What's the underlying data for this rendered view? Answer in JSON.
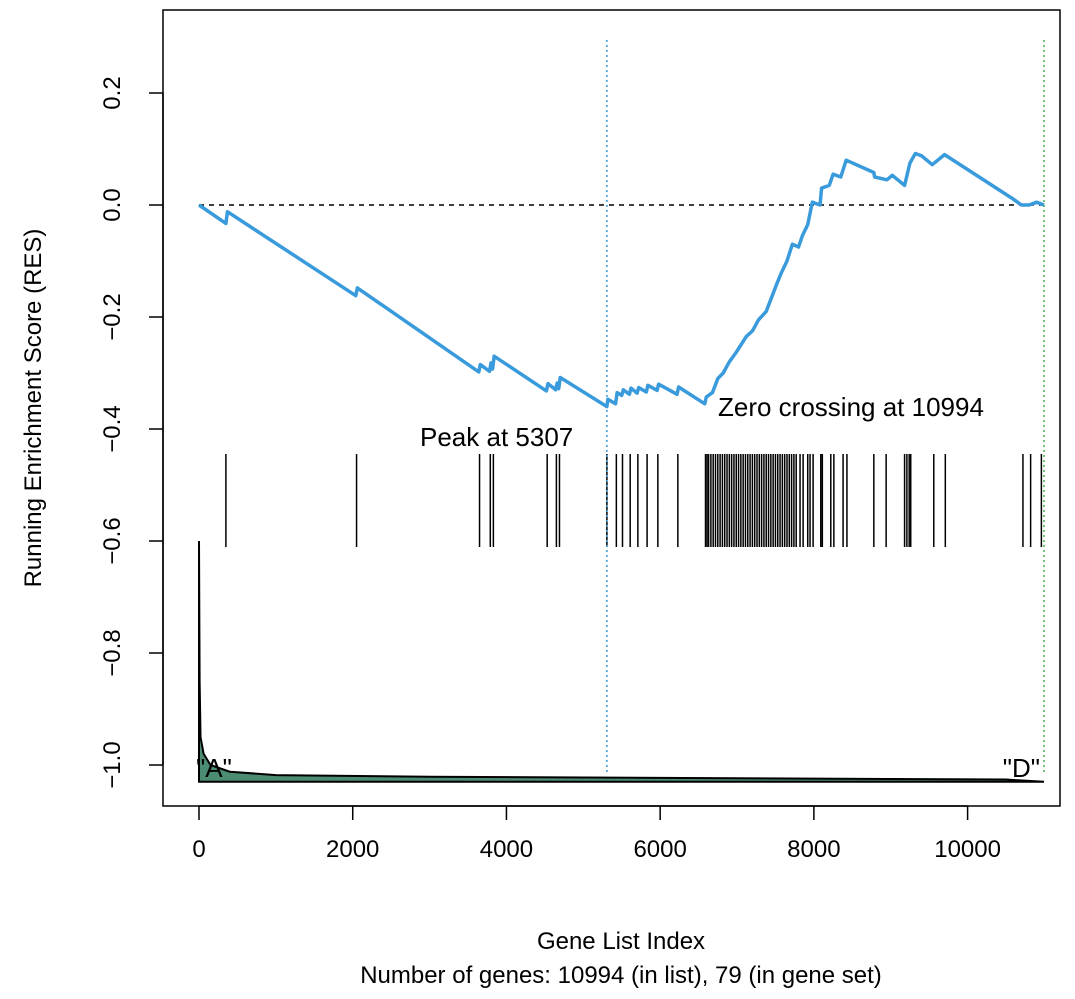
{
  "chart_data": {
    "type": "line",
    "xlabel": "Gene List Index",
    "ylabel": "Running Enrichment Score (RES)",
    "subtitle": "Number of genes: 10994 (in list), 79 (in gene set)",
    "xlim": [
      -500,
      11200
    ],
    "ylim": [
      -1.05,
      0.34
    ],
    "x_ticks": [
      "0",
      "2000",
      "4000",
      "6000",
      "8000",
      "10000"
    ],
    "y_ticks": [
      "0.2",
      "0.0",
      "−0.2",
      "−0.4",
      "−0.6",
      "−0.8",
      "−1.0"
    ],
    "annotations": {
      "peak": "Peak at 5307",
      "zero_crossing": "Zero crossing at 10994",
      "left_label": "\"A\"",
      "right_label": "\"D\""
    },
    "peak_index": 5307,
    "zero_crossing_index": 10994,
    "colors": {
      "res_line": "#3a9bdc",
      "peak_line": "#3a9bdc",
      "zero_crossing_line": "#4caf50",
      "ranked_fill": "#4c8c73",
      "hits": "#000000"
    },
    "series": [
      {
        "values": [
          [
            0,
            0.0
          ],
          [
            350,
            -0.033
          ],
          [
            370,
            -0.012
          ],
          [
            2040,
            -0.162
          ],
          [
            2060,
            -0.148
          ],
          [
            3640,
            -0.298
          ],
          [
            3660,
            -0.285
          ],
          [
            3780,
            -0.297
          ],
          [
            3800,
            -0.282
          ],
          [
            3820,
            -0.293
          ],
          [
            3840,
            -0.27
          ],
          [
            4520,
            -0.332
          ],
          [
            4540,
            -0.319
          ],
          [
            4640,
            -0.33
          ],
          [
            4660,
            -0.318
          ],
          [
            4680,
            -0.328
          ],
          [
            4700,
            -0.308
          ],
          [
            5307,
            -0.36
          ],
          [
            5320,
            -0.347
          ],
          [
            5420,
            -0.355
          ],
          [
            5440,
            -0.335
          ],
          [
            5500,
            -0.34
          ],
          [
            5520,
            -0.33
          ],
          [
            5600,
            -0.338
          ],
          [
            5620,
            -0.327
          ],
          [
            5700,
            -0.336
          ],
          [
            5720,
            -0.326
          ],
          [
            5820,
            -0.334
          ],
          [
            5840,
            -0.322
          ],
          [
            5960,
            -0.331
          ],
          [
            5980,
            -0.32
          ],
          [
            6220,
            -0.338
          ],
          [
            6240,
            -0.325
          ],
          [
            6580,
            -0.355
          ],
          [
            6600,
            -0.343
          ],
          [
            6680,
            -0.335
          ],
          [
            6750,
            -0.31
          ],
          [
            6820,
            -0.3
          ],
          [
            6900,
            -0.28
          ],
          [
            6980,
            -0.265
          ],
          [
            7050,
            -0.25
          ],
          [
            7120,
            -0.235
          ],
          [
            7200,
            -0.225
          ],
          [
            7280,
            -0.205
          ],
          [
            7380,
            -0.19
          ],
          [
            7450,
            -0.165
          ],
          [
            7520,
            -0.14
          ],
          [
            7580,
            -0.12
          ],
          [
            7650,
            -0.1
          ],
          [
            7720,
            -0.07
          ],
          [
            7800,
            -0.075
          ],
          [
            7850,
            -0.055
          ],
          [
            7920,
            -0.035
          ],
          [
            7980,
            0.005
          ],
          [
            8080,
            0.0
          ],
          [
            8100,
            0.03
          ],
          [
            8200,
            0.035
          ],
          [
            8250,
            0.055
          ],
          [
            8350,
            0.05
          ],
          [
            8420,
            0.08
          ],
          [
            8780,
            0.058
          ],
          [
            8790,
            0.05
          ],
          [
            8950,
            0.045
          ],
          [
            9020,
            0.053
          ],
          [
            9180,
            0.035
          ],
          [
            9250,
            0.075
          ],
          [
            9320,
            0.092
          ],
          [
            9400,
            0.088
          ],
          [
            9540,
            0.072
          ],
          [
            9700,
            0.09
          ],
          [
            10600,
            0.01
          ],
          [
            10700,
            0.0
          ],
          [
            10800,
            0.0
          ],
          [
            10900,
            0.005
          ],
          [
            10994,
            0.0
          ]
        ]
      }
    ],
    "hits": [
      350,
      2050,
      3650,
      3790,
      3830,
      4530,
      4650,
      4690,
      5307,
      5430,
      5510,
      5610,
      5710,
      5830,
      5970,
      6230,
      6590,
      6610,
      6630,
      6660,
      6690,
      6720,
      6750,
      6780,
      6810,
      6840,
      6870,
      6900,
      6930,
      6960,
      6990,
      7020,
      7050,
      7080,
      7110,
      7140,
      7170,
      7200,
      7230,
      7260,
      7290,
      7320,
      7350,
      7380,
      7410,
      7440,
      7470,
      7500,
      7530,
      7560,
      7590,
      7620,
      7650,
      7680,
      7710,
      7740,
      7770,
      7820,
      7860,
      7920,
      7950,
      7990,
      8090,
      8110,
      8220,
      8260,
      8380,
      8430,
      8780,
      8940,
      9180,
      9210,
      9240,
      9260,
      9560,
      9710,
      10720,
      10820,
      10960
    ],
    "ranked_list_metric": [
      [
        0,
        -0.6
      ],
      [
        8,
        -0.85
      ],
      [
        20,
        -0.95
      ],
      [
        60,
        -0.98
      ],
      [
        150,
        -1.0
      ],
      [
        400,
        -1.012
      ],
      [
        1000,
        -1.018
      ],
      [
        3000,
        -1.021
      ],
      [
        6000,
        -1.023
      ],
      [
        9000,
        -1.025
      ],
      [
        10500,
        -1.026
      ],
      [
        10994,
        -1.03
      ]
    ]
  }
}
